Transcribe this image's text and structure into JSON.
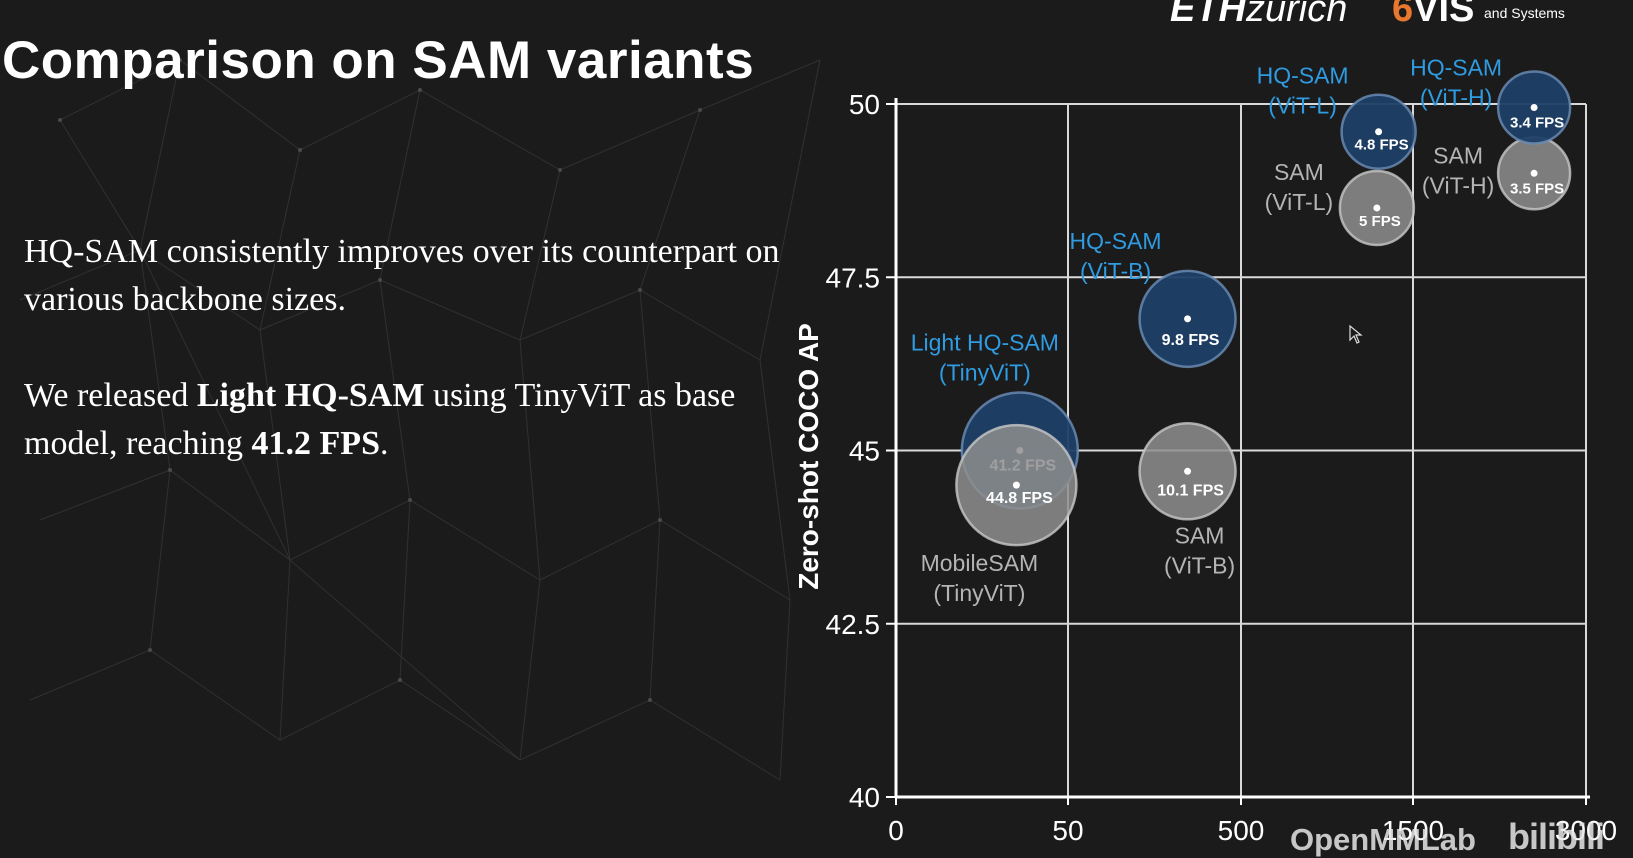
{
  "slide": {
    "title": "Comparison on SAM variants",
    "logos": {
      "eth_bold": "ETH",
      "eth_rest": "zurich",
      "vis_prefix": "6",
      "vis_name": "VIS",
      "vis_sub": "and Systems"
    },
    "paragraph1": "HQ-SAM consistently improves over its counterpart on various backbone sizes.",
    "paragraph2": {
      "part1": "We released ",
      "bold1": "Light HQ-SAM",
      "part2": " using TinyViT as base model, reaching ",
      "bold2": "41.2 FPS",
      "part3": "."
    },
    "watermark": "OpenMMLab",
    "watermark_bili": "bilibili",
    "colors": {
      "background": "#1b1b1c",
      "hq_label": "#2f9be0",
      "hq_bubble": "#1f3f66",
      "sam_bubble": "#8e8e8e",
      "sam_label": "#b4b4b4",
      "grid": "#d9d9d9",
      "eth_vis_accent": "#e9772e"
    }
  },
  "chart_data": {
    "type": "scatter",
    "ylabel": "Zero-shot COCO AP",
    "xlabel": "",
    "x_ticks": [
      "0",
      "50",
      "500",
      "1500",
      "3000"
    ],
    "y_ticks": [
      "40",
      "42.5",
      "45",
      "47.5",
      "50"
    ],
    "ylim": [
      40,
      50
    ],
    "grid": true,
    "points": [
      {
        "model": "HQ-SAM (ViT-L)",
        "label_lines": [
          "HQ-SAM",
          "(ViT-L)"
        ],
        "group": "hq",
        "x": 1300,
        "y": 49.6,
        "fps": "4.8 FPS"
      },
      {
        "model": "HQ-SAM (ViT-H)",
        "label_lines": [
          "HQ-SAM",
          "(ViT-H)"
        ],
        "group": "hq",
        "x": 2550,
        "y": 49.95,
        "fps": "3.4 FPS"
      },
      {
        "model": "SAM (ViT-L)",
        "label_lines": [
          "SAM",
          "(ViT-L)"
        ],
        "group": "sam",
        "x": 1290,
        "y": 48.5,
        "fps": "5 FPS"
      },
      {
        "model": "SAM (ViT-H)",
        "label_lines": [
          "SAM",
          "(ViT-H)"
        ],
        "group": "sam",
        "x": 2550,
        "y": 49.0,
        "fps": "3.5 FPS"
      },
      {
        "model": "HQ-SAM (ViT-B)",
        "label_lines": [
          "HQ-SAM",
          "(ViT-B)"
        ],
        "group": "hq",
        "x": 361,
        "y": 46.9,
        "fps": "9.8 FPS"
      },
      {
        "model": "SAM (ViT-B)",
        "label_lines": [
          "SAM",
          "(ViT-B)"
        ],
        "group": "sam",
        "x": 361,
        "y": 44.7,
        "fps": "10.1 FPS"
      },
      {
        "model": "Light HQ-SAM (TinyViT)",
        "label_lines": [
          "Light HQ-SAM",
          "(TinyViT)"
        ],
        "group": "hq",
        "x": 36,
        "y": 45.0,
        "fps": "41.2 FPS"
      },
      {
        "model": "MobileSAM (TinyViT)",
        "label_lines": [
          "MobileSAM",
          "(TinyViT)"
        ],
        "group": "sam",
        "x": 35,
        "y": 44.5,
        "fps": "44.8 FPS"
      }
    ]
  }
}
